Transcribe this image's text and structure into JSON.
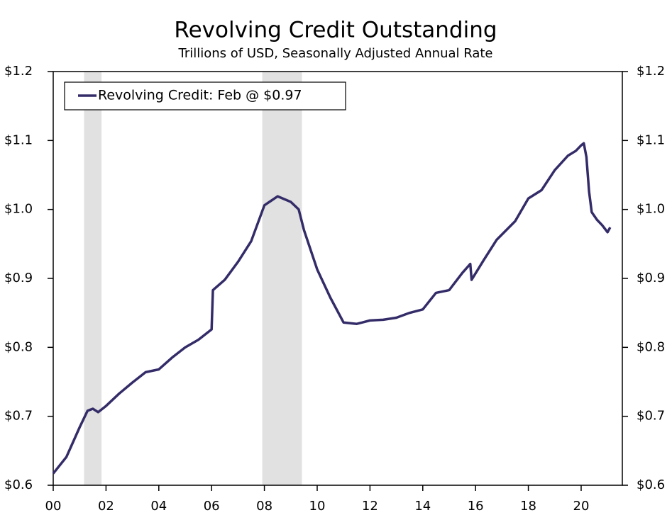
{
  "chart_data": {
    "type": "line",
    "title": "Revolving Credit Outstanding",
    "subtitle": "Trillions of USD, Seasonally Adjusted Annual Rate",
    "x": [
      2000.0,
      2000.5,
      2001.0,
      2001.3,
      2001.5,
      2001.7,
      2002.0,
      2002.5,
      2003.0,
      2003.5,
      2004.0,
      2004.5,
      2005.0,
      2005.5,
      2006.0,
      2006.05,
      2006.5,
      2007.0,
      2007.5,
      2008.0,
      2008.5,
      2009.0,
      2009.3,
      2009.5,
      2010.0,
      2010.5,
      2011.0,
      2011.5,
      2012.0,
      2012.5,
      2013.0,
      2013.5,
      2014.0,
      2014.5,
      2015.0,
      2015.5,
      2015.8,
      2015.85,
      2016.3,
      2016.8,
      2017.5,
      2018.0,
      2018.5,
      2019.0,
      2019.5,
      2019.8,
      2020.0,
      2020.1,
      2020.2,
      2020.3,
      2020.4,
      2020.6,
      2020.8,
      2021.0,
      2021.1
    ],
    "series": [
      {
        "name": "Revolving Credit: Feb @ $0.97",
        "color": "#332c68",
        "values": [
          0.617,
          0.641,
          0.684,
          0.708,
          0.711,
          0.706,
          0.715,
          0.733,
          0.749,
          0.764,
          0.768,
          0.785,
          0.8,
          0.811,
          0.826,
          0.883,
          0.898,
          0.924,
          0.954,
          1.006,
          1.019,
          1.011,
          1.0,
          0.97,
          0.913,
          0.872,
          0.836,
          0.834,
          0.839,
          0.84,
          0.843,
          0.85,
          0.855,
          0.879,
          0.883,
          0.908,
          0.921,
          0.898,
          0.926,
          0.956,
          0.983,
          1.016,
          1.028,
          1.057,
          1.078,
          1.085,
          1.093,
          1.096,
          1.076,
          1.026,
          0.996,
          0.985,
          0.977,
          0.967,
          0.974
        ]
      }
    ],
    "recessions": [
      [
        2001.17,
        2001.83
      ],
      [
        2007.92,
        2009.42
      ]
    ],
    "recession_color": "#e1e1e1",
    "xlim": [
      2000,
      2021.56
    ],
    "xticks": [
      {
        "value": 2000,
        "label": "00"
      },
      {
        "value": 2002,
        "label": "02"
      },
      {
        "value": 2004,
        "label": "04"
      },
      {
        "value": 2006,
        "label": "06"
      },
      {
        "value": 2008,
        "label": "08"
      },
      {
        "value": 2010,
        "label": "10"
      },
      {
        "value": 2012,
        "label": "12"
      },
      {
        "value": 2014,
        "label": "14"
      },
      {
        "value": 2016,
        "label": "16"
      },
      {
        "value": 2018,
        "label": "18"
      },
      {
        "value": 2020,
        "label": "20"
      }
    ],
    "ylim": [
      0.6,
      1.2
    ],
    "yticks": [
      {
        "value": 0.6,
        "label": "$0.6"
      },
      {
        "value": 0.7,
        "label": "$0.7"
      },
      {
        "value": 0.8,
        "label": "$0.8"
      },
      {
        "value": 0.9,
        "label": "$0.9"
      },
      {
        "value": 1.0,
        "label": "$1.0"
      },
      {
        "value": 1.1,
        "label": "$1.1"
      },
      {
        "value": 1.2,
        "label": "$1.2"
      }
    ],
    "legend": "upper left"
  }
}
